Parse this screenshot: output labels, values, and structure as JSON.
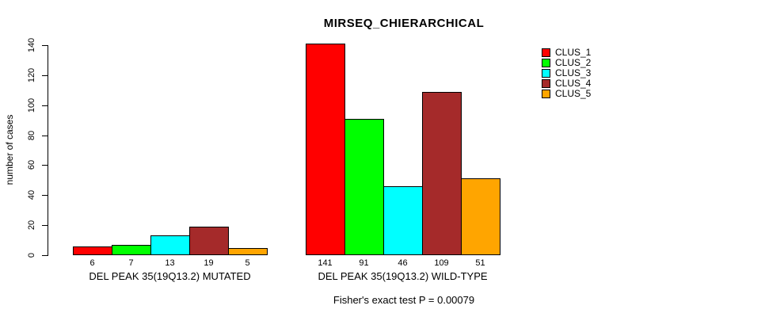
{
  "title": "MIRSEQ_CHIERARCHICAL",
  "footer": "Fisher's exact test P = 0.00079",
  "chart_data": {
    "type": "bar",
    "title": "MIRSEQ_CHIERARCHICAL",
    "ylabel": "number of cases",
    "xlabel": "",
    "ylim": [
      0,
      140
    ],
    "yticks": [
      0,
      20,
      40,
      60,
      80,
      100,
      120,
      140
    ],
    "grid": false,
    "legend_position": "top-right",
    "bar_border_color": "#000000",
    "categories": [
      "DEL PEAK 35(19Q13.2) MUTATED",
      "DEL PEAK 35(19Q13.2) WILD-TYPE"
    ],
    "series": [
      {
        "name": "CLUS_1",
        "color": "#FF0000",
        "values": [
          6,
          141
        ]
      },
      {
        "name": "CLUS_2",
        "color": "#00FF00",
        "values": [
          7,
          91
        ]
      },
      {
        "name": "CLUS_3",
        "color": "#00FFFF",
        "values": [
          13,
          46
        ]
      },
      {
        "name": "CLUS_4",
        "color": "#A52A2A",
        "values": [
          19,
          109
        ]
      },
      {
        "name": "CLUS_5",
        "color": "#FFA500",
        "values": [
          5,
          51
        ]
      }
    ],
    "bar_value_labels": [
      [
        "6",
        "7",
        "13",
        "19",
        "5"
      ],
      [
        "141",
        "91",
        "46",
        "109",
        "51"
      ]
    ],
    "annotation": "Fisher's exact test P = 0.00079"
  }
}
